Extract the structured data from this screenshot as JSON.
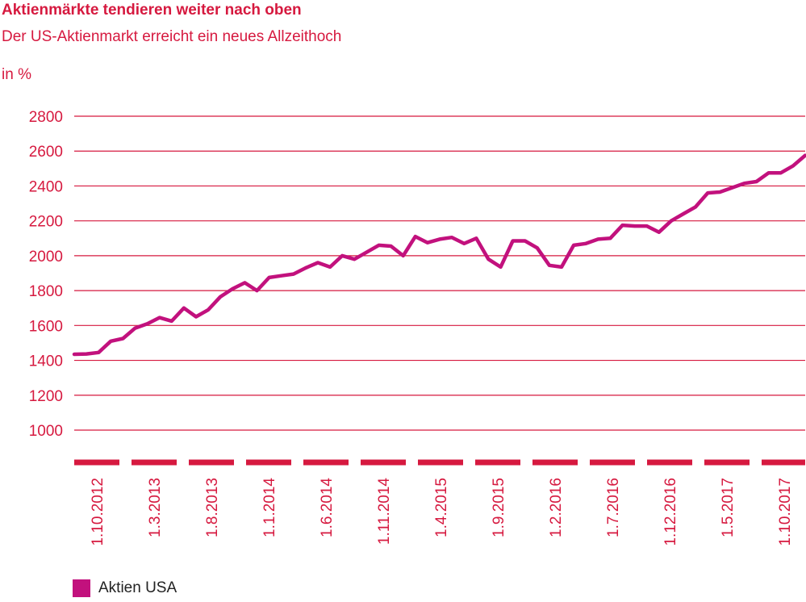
{
  "colors": {
    "accent": "#d6193f",
    "series": "#c2117d",
    "text": "#222222"
  },
  "header": {
    "title": "Aktienmärkte tendieren weiter nach oben",
    "subtitle": "Der US-Aktienmarkt erreicht ein neues Allzeithoch",
    "unit": "in %"
  },
  "chart_data": {
    "type": "line",
    "title": "Aktienmärkte tendieren weiter nach oben",
    "subtitle": "Der US-Aktienmarkt erreicht ein neues Allzeithoch",
    "ylabel": "in %",
    "ylim": [
      1000,
      2800
    ],
    "yticks": [
      1000,
      1200,
      1400,
      1600,
      1800,
      2000,
      2200,
      2400,
      2600,
      2800
    ],
    "grid": true,
    "legend_position": "bottom-left",
    "x_tick_labels": [
      "1.10.2012",
      "1.3.2013",
      "1.8.2013",
      "1.1.2014",
      "1.6.2014",
      "1.11.2014",
      "1.4.2015",
      "1.9.2015",
      "1.2.2016",
      "1.7.2016",
      "1.12.2016",
      "1.5.2017",
      "1.10.2017"
    ],
    "series": [
      {
        "name": "Aktien USA",
        "x": [
          "2012-10",
          "2012-11",
          "2012-12",
          "2013-01",
          "2013-02",
          "2013-03",
          "2013-04",
          "2013-05",
          "2013-06",
          "2013-07",
          "2013-08",
          "2013-09",
          "2013-10",
          "2013-11",
          "2013-12",
          "2014-01",
          "2014-02",
          "2014-03",
          "2014-04",
          "2014-05",
          "2014-06",
          "2014-07",
          "2014-08",
          "2014-09",
          "2014-10",
          "2014-11",
          "2014-12",
          "2015-01",
          "2015-02",
          "2015-03",
          "2015-04",
          "2015-05",
          "2015-06",
          "2015-07",
          "2015-08",
          "2015-09",
          "2015-10",
          "2015-11",
          "2015-12",
          "2016-01",
          "2016-02",
          "2016-03",
          "2016-04",
          "2016-05",
          "2016-06",
          "2016-07",
          "2016-08",
          "2016-09",
          "2016-10",
          "2016-11",
          "2016-12",
          "2017-01",
          "2017-02",
          "2017-03",
          "2017-04",
          "2017-05",
          "2017-06",
          "2017-07",
          "2017-08",
          "2017-09",
          "2017-10"
        ],
        "values": [
          1435,
          1437,
          1445,
          1510,
          1525,
          1585,
          1610,
          1645,
          1625,
          1700,
          1650,
          1690,
          1765,
          1810,
          1845,
          1800,
          1875,
          1885,
          1895,
          1930,
          1960,
          1935,
          2000,
          1980,
          2020,
          2060,
          2055,
          2000,
          2110,
          2075,
          2095,
          2105,
          2070,
          2100,
          1980,
          1935,
          2085,
          2085,
          2045,
          1945,
          1935,
          2060,
          2070,
          2095,
          2100,
          2175,
          2170,
          2170,
          2135,
          2200,
          2240,
          2280,
          2360,
          2365,
          2390,
          2415,
          2425,
          2475,
          2475,
          2515,
          2575
        ]
      }
    ]
  }
}
